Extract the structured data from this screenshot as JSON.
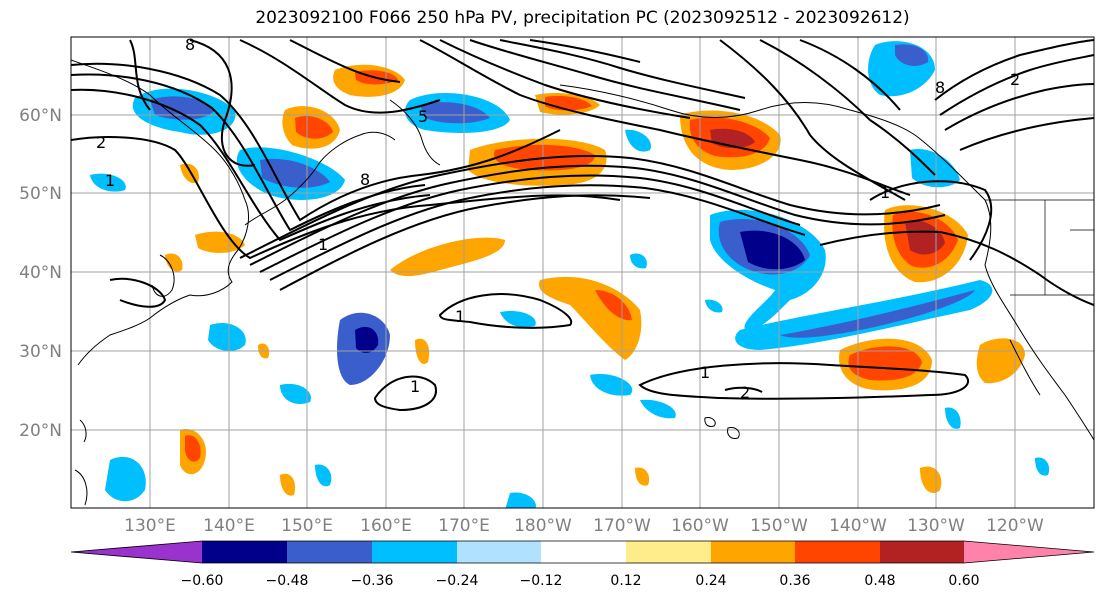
{
  "title": "2023092100 F066 250 hPa PV, precipitation PC (2023092512 - 2023092612)",
  "lat_labels": [
    "60°N",
    "50°N",
    "40°N",
    "30°N",
    "20°N"
  ],
  "lon_labels": [
    "130°E",
    "140°E",
    "150°E",
    "160°E",
    "170°E",
    "180°W",
    "170°W",
    "160°W",
    "150°W",
    "140°W",
    "130°W",
    "120°W"
  ],
  "colorbar": {
    "ticks": [
      "−0.60",
      "−0.48",
      "−0.36",
      "−0.24",
      "−0.12",
      "0.12",
      "0.24",
      "0.36",
      "0.48",
      "0.60"
    ],
    "colors": [
      "#9a32cd",
      "#00008b",
      "#3a5fcd",
      "#00bfff",
      "#b0e2ff",
      "#ffffff",
      "#ffec8b",
      "#ffa500",
      "#ff4500",
      "#b22222",
      "#ff82ab"
    ]
  },
  "contour_labels": [
    "8",
    "2",
    "1",
    "8",
    "5",
    "1",
    "1",
    "1",
    "1",
    "2",
    "8",
    "2",
    "1"
  ]
}
